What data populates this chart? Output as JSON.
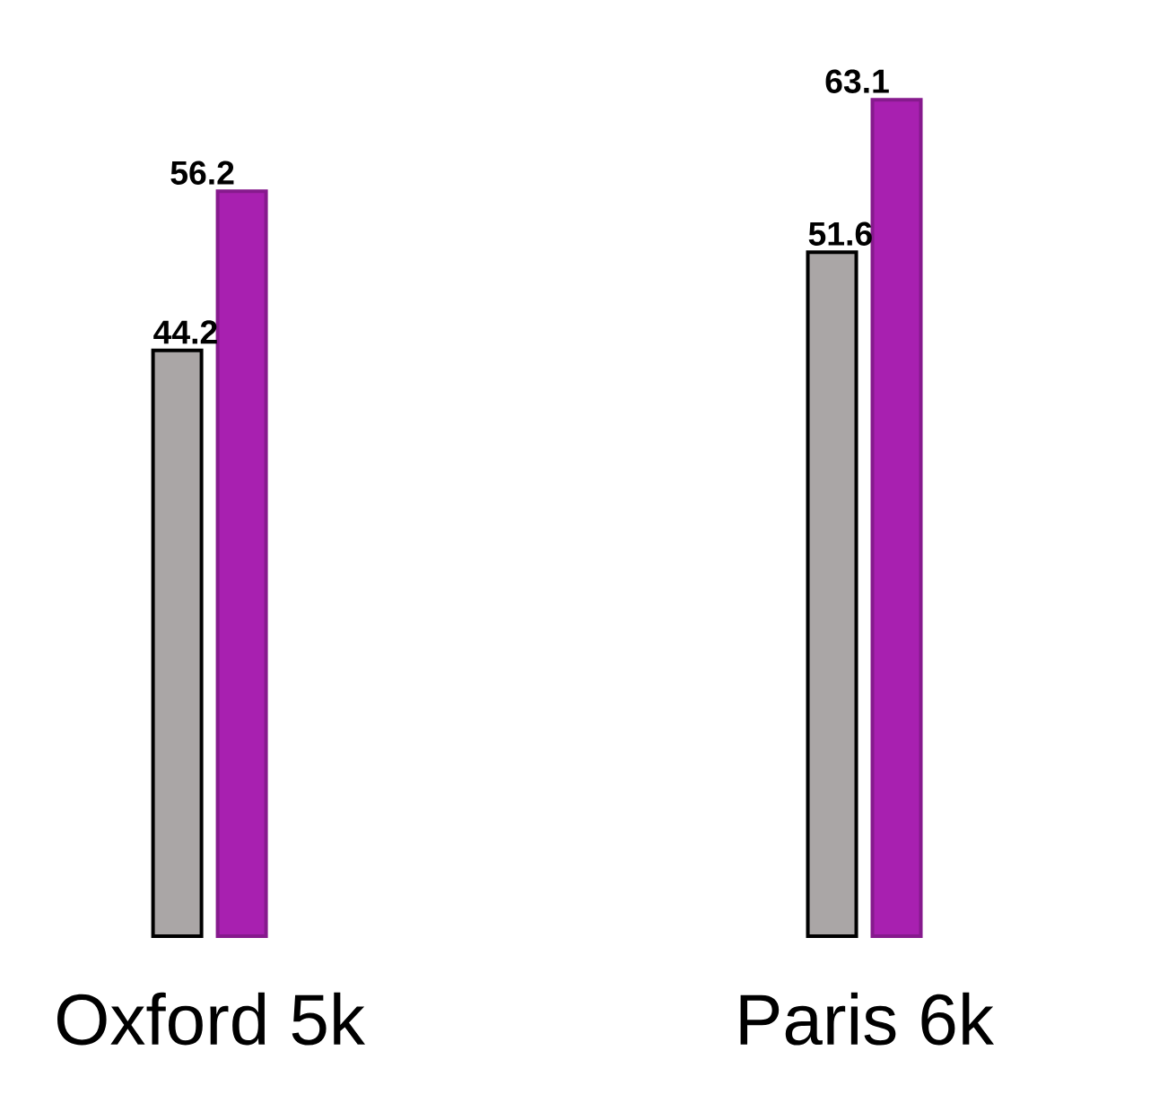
{
  "chart_data": {
    "type": "bar",
    "categories": [
      "Oxford 5k",
      "Paris 6k"
    ],
    "series": [
      {
        "color": "#aaa6a6",
        "values": [
          44.2,
          51.6
        ]
      },
      {
        "color": "#a820b0",
        "values": [
          56.2,
          63.1
        ]
      }
    ],
    "data_labels": true
  }
}
